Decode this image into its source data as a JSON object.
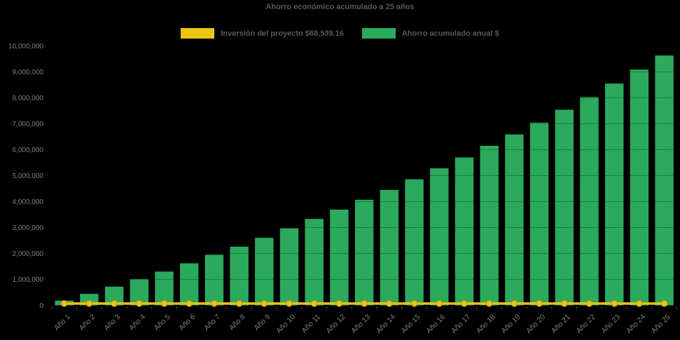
{
  "page": {
    "background": "#000000"
  },
  "chart": {
    "title": "Ahorro económico acumulado a 25 años",
    "legend": [
      {
        "label": "Inversión del proyecto $68,539.16",
        "color": "#EDC414",
        "series": "investment"
      },
      {
        "label": "Ahorro acumulado anual $",
        "color": "#2BAA5D",
        "series": "savings"
      }
    ]
  },
  "chart_data": {
    "type": "bar",
    "title": "Ahorro económico acumulado a 25 años",
    "xlabel": "",
    "ylabel": "",
    "ylim": [
      0,
      10000000
    ],
    "ytick_step": 1000000,
    "grid": "subtle-dark-over-bars",
    "legend_position": "top",
    "background_color": "#000000",
    "title_color": "#595959",
    "axis_label_color": "#7F7F7F",
    "tick_mark_color": "#4B4B4B",
    "categories": [
      "Año 1",
      "Año 2",
      "Año 3",
      "Año 4",
      "Año 5",
      "Año 6",
      "Año 7",
      "Año 8",
      "Año 9",
      "Año 10",
      "Año 11",
      "Año 12",
      "Año 13",
      "Año 14",
      "Año 15",
      "Año 16",
      "Año 17",
      "Año 18",
      "Año 19",
      "Año 20",
      "Año 21",
      "Año 22",
      "Año 23",
      "Año 24",
      "Año 25"
    ],
    "series": [
      {
        "name": "Inversión del proyecto $68,539.16",
        "type": "line",
        "color": "#EDC414",
        "marker_stroke": "#C79F0A",
        "values": [
          68539.16,
          68539.16,
          68539.16,
          68539.16,
          68539.16,
          68539.16,
          68539.16,
          68539.16,
          68539.16,
          68539.16,
          68539.16,
          68539.16,
          68539.16,
          68539.16,
          68539.16,
          68539.16,
          68539.16,
          68539.16,
          68539.16,
          68539.16,
          68539.16,
          68539.16,
          68539.16,
          68539.16,
          68539.16
        ]
      },
      {
        "name": "Ahorro acumulado anual $",
        "type": "bar",
        "color": "#2BAA5D",
        "values": [
          180000,
          440000,
          720000,
          1010000,
          1300000,
          1620000,
          1950000,
          2260000,
          2600000,
          2970000,
          3330000,
          3690000,
          4070000,
          4450000,
          4860000,
          5280000,
          5700000,
          6150000,
          6590000,
          7040000,
          7540000,
          8030000,
          8550000,
          9090000,
          9630000
        ]
      }
    ]
  }
}
